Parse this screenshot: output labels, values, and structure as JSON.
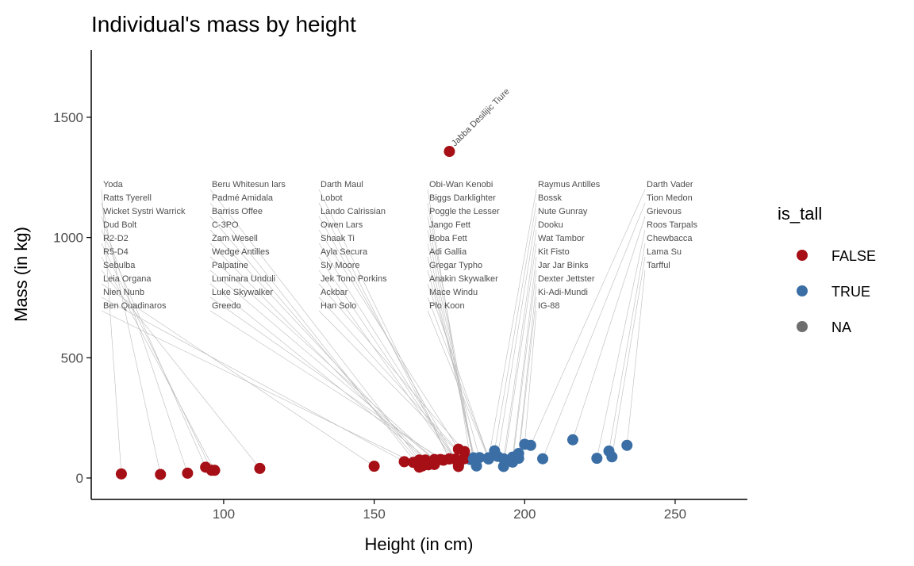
{
  "chart_data": {
    "type": "scatter",
    "title": "Individual's mass by height",
    "xlabel": "Height (in cm)",
    "ylabel": "Mass (in kg)",
    "xlim": [
      56,
      274
    ],
    "ylim": [
      -89,
      1780
    ],
    "xticks": [
      100,
      150,
      200,
      250
    ],
    "yticks": [
      0,
      500,
      1000,
      1500
    ],
    "grid": false,
    "legend": {
      "title": "is_tall",
      "placement": "right",
      "entries": [
        {
          "label": "FALSE",
          "color": "#A50F15"
        },
        {
          "label": "TRUE",
          "color": "#3A6EA5"
        },
        {
          "label": "NA",
          "color": "#6E6E6E"
        }
      ]
    },
    "points": [
      {
        "name": "Luke Skywalker",
        "x": 172,
        "y": 77,
        "is_tall": "FALSE"
      },
      {
        "name": "C-3PO",
        "x": 167,
        "y": 75,
        "is_tall": "FALSE"
      },
      {
        "name": "R2-D2",
        "x": 96,
        "y": 32,
        "is_tall": "FALSE"
      },
      {
        "name": "Darth Vader",
        "x": 202,
        "y": 136,
        "is_tall": "TRUE"
      },
      {
        "name": "Leia Organa",
        "x": 150,
        "y": 49,
        "is_tall": "FALSE"
      },
      {
        "name": "Owen Lars",
        "x": 178,
        "y": 120,
        "is_tall": "FALSE"
      },
      {
        "name": "Beru Whitesun lars",
        "x": 165,
        "y": 75,
        "is_tall": "FALSE"
      },
      {
        "name": "R5-D4",
        "x": 97,
        "y": 32,
        "is_tall": "FALSE"
      },
      {
        "name": "Biggs Darklighter",
        "x": 183,
        "y": 84,
        "is_tall": "TRUE"
      },
      {
        "name": "Obi-Wan Kenobi",
        "x": 182,
        "y": 77,
        "is_tall": "TRUE"
      },
      {
        "name": "Anakin Skywalker",
        "x": 188,
        "y": 84,
        "is_tall": "TRUE"
      },
      {
        "name": "Chewbacca",
        "x": 228,
        "y": 112,
        "is_tall": "TRUE"
      },
      {
        "name": "Han Solo",
        "x": 180,
        "y": 80,
        "is_tall": "FALSE"
      },
      {
        "name": "Greedo",
        "x": 173,
        "y": 74,
        "is_tall": "FALSE"
      },
      {
        "name": "Jabba Desilijic Tiure",
        "x": 175,
        "y": 1358,
        "is_tall": "FALSE"
      },
      {
        "name": "Wedge Antilles",
        "x": 170,
        "y": 77,
        "is_tall": "FALSE"
      },
      {
        "name": "Jek Tono Porkins",
        "x": 180,
        "y": 110,
        "is_tall": "FALSE"
      },
      {
        "name": "Yoda",
        "x": 66,
        "y": 17,
        "is_tall": "FALSE"
      },
      {
        "name": "Palpatine",
        "x": 170,
        "y": 75,
        "is_tall": "FALSE"
      },
      {
        "name": "Boba Fett",
        "x": 183,
        "y": 78.2,
        "is_tall": "TRUE"
      },
      {
        "name": "IG-88",
        "x": 200,
        "y": 140,
        "is_tall": "TRUE"
      },
      {
        "name": "Bossk",
        "x": 190,
        "y": 113,
        "is_tall": "TRUE"
      },
      {
        "name": "Lando Calrissian",
        "x": 177,
        "y": 79,
        "is_tall": "FALSE"
      },
      {
        "name": "Lobot",
        "x": 175,
        "y": 79,
        "is_tall": "FALSE"
      },
      {
        "name": "Ackbar",
        "x": 180,
        "y": 83,
        "is_tall": "FALSE"
      },
      {
        "name": "Wicket Systri Warrick",
        "x": 88,
        "y": 20,
        "is_tall": "FALSE"
      },
      {
        "name": "Nien Nunb",
        "x": 160,
        "y": 68,
        "is_tall": "FALSE"
      },
      {
        "name": "Nute Gunray",
        "x": 191,
        "y": 90,
        "is_tall": "TRUE"
      },
      {
        "name": "Padmé Amidala",
        "x": 165,
        "y": 45,
        "is_tall": "FALSE"
      },
      {
        "name": "Jar Jar Binks",
        "x": 196,
        "y": 66,
        "is_tall": "TRUE"
      },
      {
        "name": "Roos Tarpals",
        "x": 224,
        "y": 82,
        "is_tall": "TRUE"
      },
      {
        "name": "Sebulba",
        "x": 112,
        "y": 40,
        "is_tall": "FALSE"
      },
      {
        "name": "Darth Maul",
        "x": 175,
        "y": 80,
        "is_tall": "FALSE"
      },
      {
        "name": "Ayla Secura",
        "x": 178,
        "y": 55,
        "is_tall": "FALSE"
      },
      {
        "name": "Ratts Tyerell",
        "x": 79,
        "y": 15,
        "is_tall": "FALSE"
      },
      {
        "name": "Dud Bolt",
        "x": 94,
        "y": 45,
        "is_tall": "FALSE"
      },
      {
        "name": "Ben Quadinaros",
        "x": 163,
        "y": 65,
        "is_tall": "FALSE"
      },
      {
        "name": "Mace Windu",
        "x": 188,
        "y": 84,
        "is_tall": "TRUE"
      },
      {
        "name": "Ki-Adi-Mundi",
        "x": 198,
        "y": 82,
        "is_tall": "TRUE"
      },
      {
        "name": "Kit Fisto",
        "x": 196,
        "y": 87,
        "is_tall": "TRUE"
      },
      {
        "name": "Adi Gallia",
        "x": 184,
        "y": 50,
        "is_tall": "TRUE"
      },
      {
        "name": "Plo Koon",
        "x": 188,
        "y": 80,
        "is_tall": "TRUE"
      },
      {
        "name": "Gregar Typho",
        "x": 185,
        "y": 85,
        "is_tall": "TRUE"
      },
      {
        "name": "Poggle the Lesser",
        "x": 183,
        "y": 80,
        "is_tall": "TRUE"
      },
      {
        "name": "Luminara Unduli",
        "x": 170,
        "y": 56.2,
        "is_tall": "FALSE"
      },
      {
        "name": "Barriss Offee",
        "x": 166,
        "y": 50,
        "is_tall": "FALSE"
      },
      {
        "name": "Dooku",
        "x": 193,
        "y": 80,
        "is_tall": "TRUE"
      },
      {
        "name": "Jango Fett",
        "x": 183,
        "y": 79,
        "is_tall": "TRUE"
      },
      {
        "name": "Zam Wesell",
        "x": 168,
        "y": 55,
        "is_tall": "FALSE"
      },
      {
        "name": "Dexter Jettster",
        "x": 198,
        "y": 102,
        "is_tall": "TRUE"
      },
      {
        "name": "Lama Su",
        "x": 229,
        "y": 88,
        "is_tall": "TRUE"
      },
      {
        "name": "Wat Tambor",
        "x": 193,
        "y": 48,
        "is_tall": "TRUE"
      },
      {
        "name": "Shaak Ti",
        "x": 178,
        "y": 57,
        "is_tall": "FALSE"
      },
      {
        "name": "Grievous",
        "x": 216,
        "y": 159,
        "is_tall": "TRUE"
      },
      {
        "name": "Tarfful",
        "x": 234,
        "y": 136,
        "is_tall": "TRUE"
      },
      {
        "name": "Raymus Antilles",
        "x": 188,
        "y": 79,
        "is_tall": "TRUE"
      },
      {
        "name": "Sly Moore",
        "x": 178,
        "y": 48,
        "is_tall": "FALSE"
      },
      {
        "name": "Tion Medon",
        "x": 206,
        "y": 80,
        "is_tall": "TRUE"
      }
    ]
  }
}
